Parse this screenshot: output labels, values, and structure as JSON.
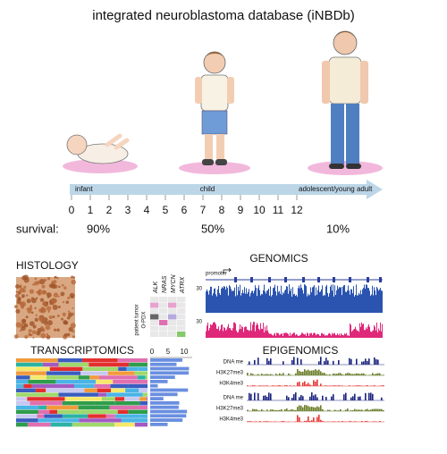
{
  "title": "integrated neuroblastoma database (iNBDb)",
  "timeline": {
    "stages": [
      "infant",
      "child",
      "adolescent/young adult"
    ],
    "ages": [
      0,
      1,
      2,
      3,
      4,
      5,
      6,
      7,
      8,
      9,
      10,
      11,
      12
    ]
  },
  "survival": {
    "label": "survival:",
    "values": [
      "90%",
      "50%",
      "10%"
    ]
  },
  "panels": {
    "histology": "HISTOLOGY",
    "heatmap": {
      "genes": [
        "ALK",
        "NRAS",
        "MYCN",
        "ATRX"
      ],
      "row_label": [
        "patient tumor",
        "O-PDX"
      ]
    },
    "genomics": {
      "title": "GENOMICS",
      "promoter": "promoter",
      "scale": [
        "30",
        "30"
      ]
    },
    "transcriptomics": {
      "title": "TRANSCRIPTOMICS",
      "axis": [
        "0",
        "5",
        "10"
      ]
    },
    "epigenomics": {
      "title": "EPIGENOMICS",
      "tracks": [
        "DNA me",
        "H3K27me3",
        "H3K4me3",
        "DNA me",
        "H3K27me3",
        "H3K4me3"
      ]
    }
  }
}
